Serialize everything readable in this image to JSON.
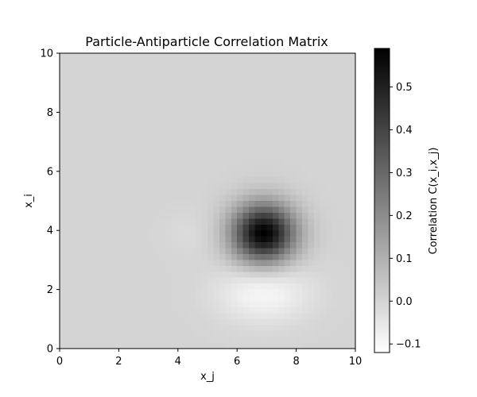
{
  "chart_data": {
    "type": "heatmap",
    "title": "Particle-Antiparticle Correlation Matrix",
    "xlabel": "x_j",
    "ylabel": "x_i",
    "xlim": [
      0,
      10
    ],
    "ylim": [
      0,
      10
    ],
    "x_ticks": [
      "0",
      "2",
      "4",
      "6",
      "8",
      "10"
    ],
    "y_ticks": [
      "0",
      "2",
      "4",
      "6",
      "8",
      "10"
    ],
    "grid": false,
    "colormap": "gray_r",
    "baseline_value": 0.0,
    "colorbar": {
      "label": "Correlation C(x_i,x_j)",
      "range": [
        -0.12,
        0.59
      ],
      "ticks": [
        "−0.1",
        "0.0",
        "0.1",
        "0.2",
        "0.3",
        "0.4",
        "0.5"
      ]
    },
    "features": [
      {
        "kind": "positive-peak",
        "center_x": 6.9,
        "center_y": 3.9,
        "peak_value": 0.59,
        "spread_x": 0.75,
        "spread_y": 0.7
      },
      {
        "kind": "negative-trough",
        "center_x": 6.9,
        "center_y": 1.9,
        "min_value": -0.1,
        "spread_x": 1.1,
        "spread_y": 0.7
      },
      {
        "kind": "negative-trough",
        "center_x": 4.4,
        "center_y": 3.9,
        "min_value": -0.02,
        "spread_x": 0.6,
        "spread_y": 0.55
      }
    ]
  }
}
